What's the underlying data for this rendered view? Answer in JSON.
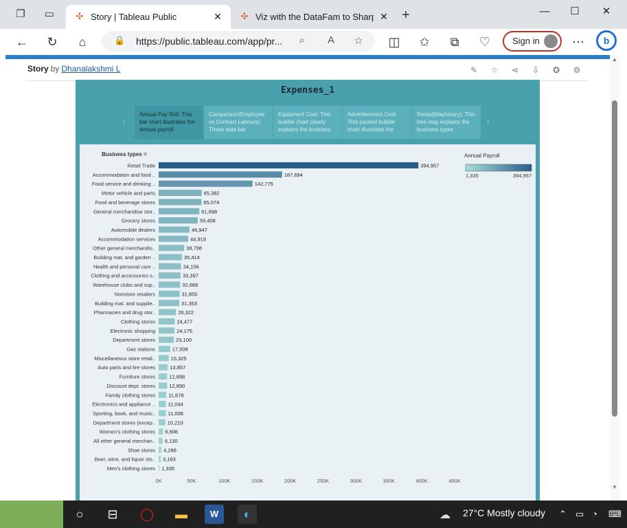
{
  "browser": {
    "tabs": [
      {
        "title": "Story | Tableau Public",
        "active": true
      },
      {
        "title": "Viz with the DataFam to Sharpen",
        "active": false
      }
    ],
    "address": {
      "url": "https://public.tableau.com/app/pr..."
    },
    "sign_in_label": "Sign in"
  },
  "page": {
    "story_label": "Story",
    "by_label": "by",
    "author": "Dhanalakshmi L"
  },
  "viz": {
    "title": "Expenses_1",
    "story_points": [
      {
        "text": "Annual Pay Roll: This bar chart illustrates the annual payroll",
        "active": true
      },
      {
        "text": "Comparison(Employee vs Contract Labours): These data bar",
        "active": false
      },
      {
        "text": "Equipment Cost: This bubble chart clearly explains the business",
        "active": false
      },
      {
        "text": "Advertisement Cost: This packed bubble chart illustrates the",
        "active": false
      },
      {
        "text": "Rental(Machinary): This tree map explains the business types",
        "active": false
      }
    ]
  },
  "chart_data": {
    "type": "bar",
    "orientation": "horizontal",
    "row_header": "Business types",
    "categories": [
      "Retail Trade",
      "Accommodation and food ..",
      "Food service and drinking ..",
      "Motor vehicle and parts",
      "Food and beverage stores",
      "General merchandise stor..",
      "Grocery stores",
      "Automobile dealers",
      "Accommodation services",
      "Other general merchandis..",
      "Building mat. and garden ..",
      "Health and personal care ..",
      "Clothing and accessories s..",
      "Warehouse clubs and sup..",
      "Nonstore retailers",
      "Building mat. and supplie..",
      "Pharmacies and drug stor..",
      "Clothing stores",
      "Electronic shopping",
      "Department stores",
      "Gas stations",
      "Miscellaneous store retail..",
      "Auto parts and tire stores",
      "Furniture stores",
      "Discount dept. stores",
      "Family clothing stores",
      "Electronics and appliance ..",
      "Sporting, book, and music..",
      "Department stores (excep..",
      "Women's clothing stores",
      "All other general merchan..",
      "Shoe stores",
      "Beer, wine, and liquor sto..",
      "Men's clothing stores"
    ],
    "values": [
      394957,
      187694,
      142775,
      65382,
      65074,
      61898,
      59408,
      46947,
      44919,
      38798,
      35414,
      34156,
      33397,
      32668,
      31855,
      31353,
      26322,
      24477,
      24175,
      23100,
      17508,
      15325,
      13857,
      12898,
      12890,
      11678,
      11044,
      11008,
      10210,
      6606,
      6130,
      4288,
      3163,
      1335
    ],
    "value_labels": [
      "394,957",
      "187,694",
      "142,775",
      "65,382",
      "65,074",
      "61,898",
      "59,408",
      "46,947",
      "44,919",
      "38,798",
      "35,414",
      "34,156",
      "33,397",
      "32,668",
      "31,855",
      "31,353",
      "26,322",
      "24,477",
      "24,175",
      "23,100",
      "17,508",
      "15,325",
      "13,857",
      "12,898",
      "12,890",
      "11,678",
      "11,044",
      "11,008",
      "10,210",
      "6,606",
      "6,130",
      "4,288",
      "3,163",
      "1,335"
    ],
    "x_ticks": [
      "0K",
      "50K",
      "100K",
      "150K",
      "200K",
      "250K",
      "300K",
      "350K",
      "400K",
      "450K"
    ],
    "xlim": [
      0,
      450000
    ],
    "legend": {
      "title": "Annual Payroll",
      "min_label": "1,335",
      "max_label": "394,957",
      "min": 1335,
      "max": 394957,
      "placement": "top-right"
    },
    "colors": {
      "low": "#a8dcd8",
      "high": "#2b5d8a"
    }
  },
  "taskbar": {
    "weather": "27°C  Mostly cloudy"
  }
}
